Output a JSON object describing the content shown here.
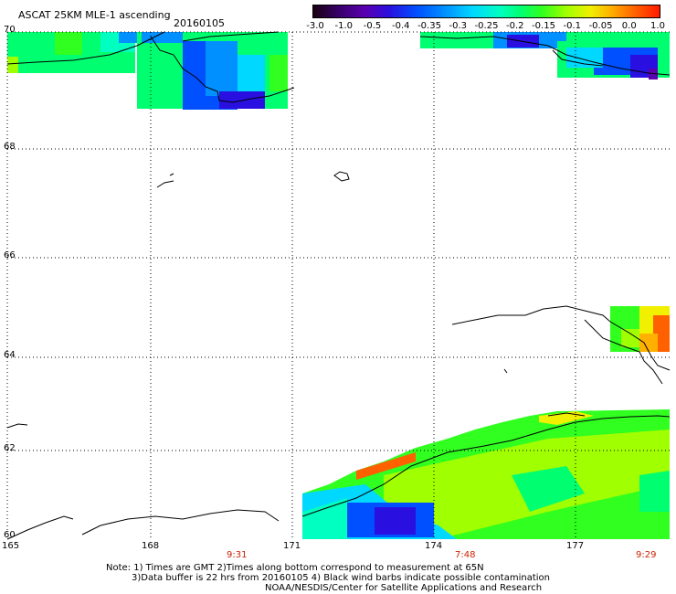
{
  "header": {
    "title": "ASCAT 25KM MLE-1 ascending",
    "date": "20160105"
  },
  "colorbar": {
    "labels": [
      "-3.0",
      "-1.0",
      "-0.5",
      "-0.4",
      "-0.35",
      "-0.3",
      "-0.25",
      "-0.2",
      "-0.15",
      "-0.1",
      "-0.05",
      "0.0",
      "1.0"
    ],
    "colors": [
      "#1a0010",
      "#3a0070",
      "#5a00b0",
      "#2a10e0",
      "#0050ff",
      "#0090ff",
      "#00d8ff",
      "#00ffc0",
      "#00ff70",
      "#30ff20",
      "#a0ff00",
      "#f0f000",
      "#ffb000",
      "#ff6000",
      "#ff1a00"
    ]
  },
  "axes": {
    "lat_labels": [
      "70",
      "68",
      "66",
      "64",
      "62",
      "60"
    ],
    "lon_labels": [
      "165",
      "168",
      "171",
      "174",
      "177"
    ],
    "times": [
      "9:31",
      "7:48",
      "9:29"
    ]
  },
  "footer": {
    "line1": "Note: 1) Times are GMT 2)Times along bottom correspond to measurement at 65N",
    "line2": "3)Data buffer is 22 hrs from 20160105 4) Black wind barbs indicate possible contamination",
    "line3": "NOAA/NESDIS/Center for Satellite Applications and Research"
  }
}
